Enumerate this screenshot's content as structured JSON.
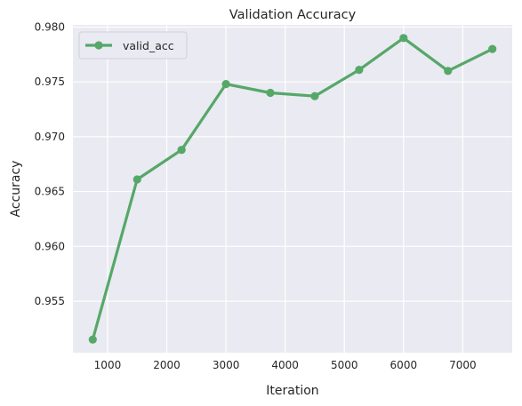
{
  "chart_data": {
    "type": "line",
    "title": "Validation Accuracy",
    "xlabel": "Iteration",
    "ylabel": "Accuracy",
    "x": [
      750,
      1500,
      2250,
      3000,
      3750,
      4500,
      5250,
      6000,
      6750,
      7500
    ],
    "series": [
      {
        "name": "valid_acc",
        "values": [
          0.9515,
          0.9661,
          0.9688,
          0.9748,
          0.974,
          0.9737,
          0.9761,
          0.979,
          0.976,
          0.978
        ]
      }
    ],
    "xlim": [
      415,
      7835
    ],
    "ylim": [
      0.9503,
      0.9802
    ],
    "xticks": [
      "1000",
      "2000",
      "3000",
      "4000",
      "5000",
      "6000",
      "7000"
    ],
    "yticks": [
      "0.955",
      "0.960",
      "0.965",
      "0.970",
      "0.975",
      "0.980"
    ],
    "grid": true,
    "legend_position": "top-left",
    "colors": {
      "plot_background": "#eaeaf2",
      "grid": "#ffffff",
      "line": "#55a868"
    }
  }
}
